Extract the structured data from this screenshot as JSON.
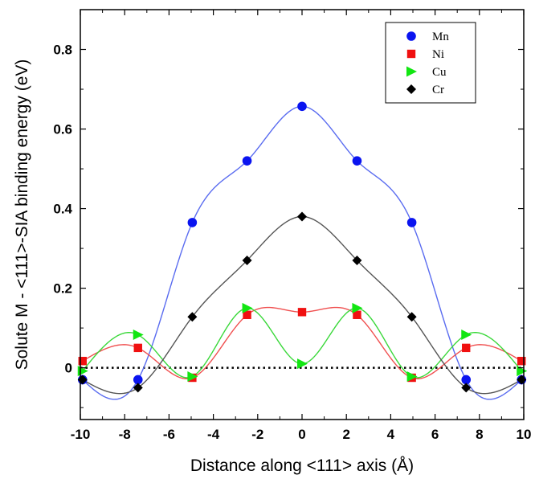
{
  "chart_data": {
    "type": "scatter",
    "xlabel": "Distance along <111> axis (Å)",
    "ylabel": "Solute M - <111>-SIA binding energy (eV)",
    "xlim": [
      -10,
      10
    ],
    "ylim": [
      -0.13,
      0.9
    ],
    "xticks": [
      -10,
      -8,
      -6,
      -4,
      -2,
      0,
      2,
      4,
      6,
      8,
      10
    ],
    "yticks": [
      0,
      0.2,
      0.4,
      0.6,
      0.8
    ],
    "xtick_labels": [
      "-10",
      "-8",
      "-6",
      "-4",
      "-2",
      "0",
      "2",
      "4",
      "6",
      "8",
      "10"
    ],
    "ytick_labels": [
      "0",
      "0.2",
      "0.4",
      "0.6",
      "0.8"
    ],
    "legend_position": "top-right",
    "reference_line": {
      "y": 0,
      "style": "dotted",
      "color": "#000000"
    },
    "x": [
      -9.9,
      -7.4,
      -4.95,
      -2.48,
      0,
      2.48,
      4.95,
      7.4,
      9.9
    ],
    "series": [
      {
        "name": "Mn",
        "marker": "circle",
        "color": "#0a14f0",
        "line_color": "#5a6cf0",
        "values": [
          -0.03,
          -0.03,
          0.365,
          0.52,
          0.657,
          0.52,
          0.365,
          -0.03,
          -0.03
        ]
      },
      {
        "name": "Ni",
        "marker": "square",
        "color": "#f01010",
        "line_color": "#f05050",
        "values": [
          0.017,
          0.05,
          -0.025,
          0.133,
          0.14,
          0.133,
          -0.025,
          0.05,
          0.017
        ]
      },
      {
        "name": "Cu",
        "marker": "triangle-right",
        "color": "#12e612",
        "line_color": "#3ad83a",
        "values": [
          -0.008,
          0.083,
          -0.022,
          0.15,
          0.01,
          0.15,
          -0.022,
          0.083,
          -0.008
        ]
      },
      {
        "name": "Cr",
        "marker": "diamond",
        "color": "#000000",
        "line_color": "#555555",
        "values": [
          -0.03,
          -0.05,
          0.128,
          0.27,
          0.38,
          0.27,
          0.128,
          -0.05,
          -0.03
        ]
      }
    ]
  }
}
